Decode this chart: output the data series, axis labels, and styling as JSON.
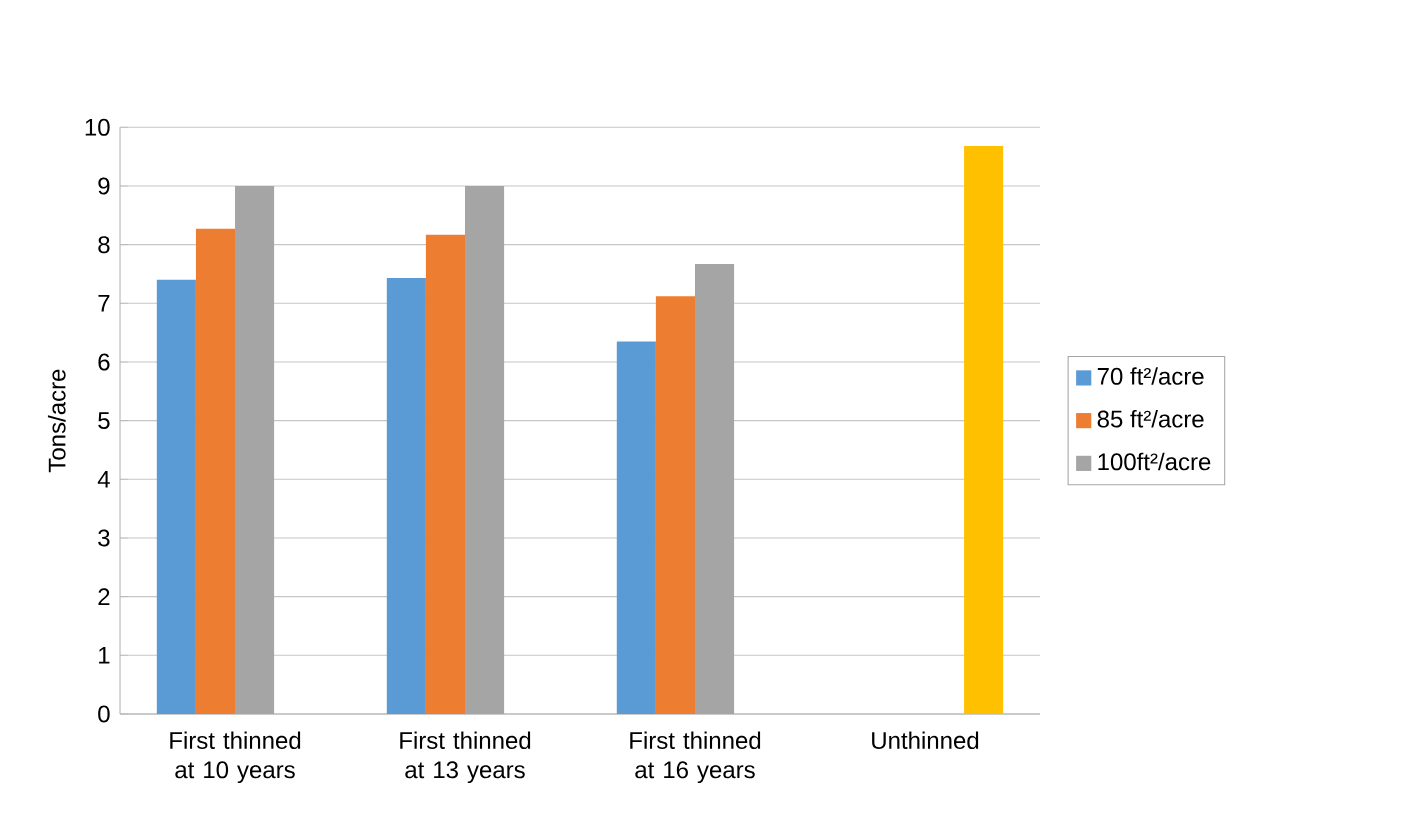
{
  "chart_data": {
    "type": "bar",
    "ylabel": "Tons/acre",
    "categories": [
      "First thinned at 10 years",
      "First thinned at 13 years",
      "First thinned at 16 years",
      "Unthinned"
    ],
    "series": [
      {
        "name": "70 ft²/acre",
        "color": "#5b9bd5",
        "values": [
          7.4,
          7.43,
          6.35,
          null
        ]
      },
      {
        "name": "85 ft²/acre",
        "color": "#ed7d31",
        "values": [
          8.27,
          8.17,
          7.12,
          null
        ]
      },
      {
        "name": "100ft²/acre",
        "color": "#a5a5a5",
        "values": [
          9.0,
          9.0,
          7.67,
          null
        ]
      },
      {
        "color": "#ffc000",
        "values": [
          null,
          null,
          null,
          9.68
        ]
      }
    ],
    "ylim": [
      0,
      10
    ],
    "yticks": [
      0,
      1,
      2,
      3,
      4,
      5,
      6,
      7,
      8,
      9,
      10
    ],
    "grid": "y",
    "legend": "right"
  }
}
